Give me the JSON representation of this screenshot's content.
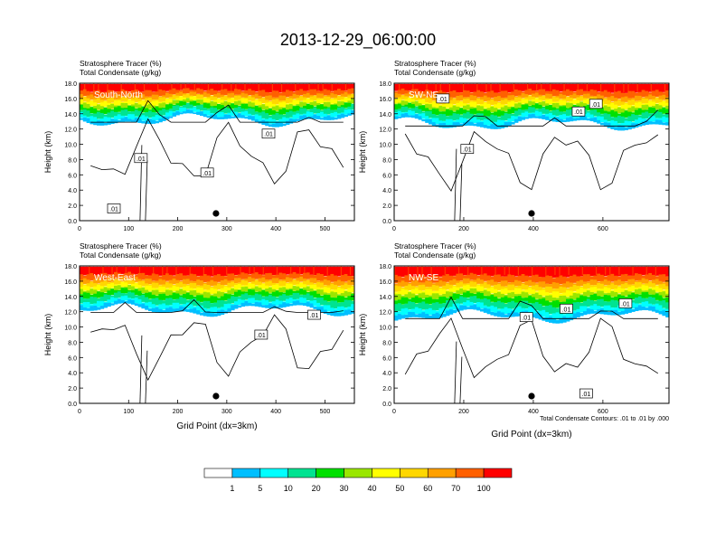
{
  "title": "2013-12-29_06:00:00",
  "chart_data": {
    "type": "heatmap",
    "panels": [
      {
        "name": "South-North",
        "label": "South-North",
        "line1": "Stratosphere Tracer   (%)",
        "line2": "Total Condensate   (g/kg)",
        "ylabel": "Height (km)",
        "xlabel": "",
        "xlim": [
          0,
          560
        ],
        "xticks": [
          0,
          100,
          200,
          300,
          400,
          500
        ],
        "ylim": [
          0,
          18
        ],
        "yticks": [
          "0.0",
          "2.0",
          "4.0",
          "6.0",
          "8.0",
          "10.0",
          "12.0",
          "14.0",
          "16.0",
          "18.0"
        ],
        "marker_x": 278,
        "band_top": 17.9,
        "band_bottom": 13.3,
        "contour_labels": [
          {
            "text": ".01",
            "x": 70,
            "y": 1.6
          },
          {
            "text": ".01",
            "x": 125,
            "y": 8.2
          },
          {
            "text": ".01",
            "x": 260,
            "y": 6.3
          },
          {
            "text": ".01",
            "x": 385,
            "y": 11.4
          }
        ]
      },
      {
        "name": "SW-NE",
        "label": "SW-NE",
        "line1": "Stratosphere Tracer   (%)",
        "line2": "Total Condensate   (g/kg)",
        "ylabel": "Height (km)",
        "xlabel": "",
        "xlim": [
          0,
          790
        ],
        "xticks": [
          0,
          200,
          400,
          600
        ],
        "ylim": [
          0,
          18
        ],
        "yticks": [
          "0.0",
          "2.0",
          "4.0",
          "6.0",
          "8.0",
          "10.0",
          "12.0",
          "14.0",
          "16.0",
          "18.0"
        ],
        "marker_x": 395,
        "band_top": 17.9,
        "band_bottom": 12.8,
        "contour_labels": [
          {
            "text": ".01",
            "x": 210,
            "y": 9.4
          },
          {
            "text": ".01",
            "x": 140,
            "y": 16.0
          },
          {
            "text": ".01",
            "x": 530,
            "y": 14.3
          },
          {
            "text": ".01",
            "x": 580,
            "y": 15.3
          }
        ]
      },
      {
        "name": "West-East",
        "label": "West-East",
        "line1": "Stratosphere Tracer   (%)",
        "line2": "Total Condensate   (g/kg)",
        "ylabel": "Height (km)",
        "xlabel": "Grid Point (dx=3km)",
        "xlim": [
          0,
          560
        ],
        "xticks": [
          0,
          100,
          200,
          300,
          400,
          500
        ],
        "ylim": [
          0,
          18
        ],
        "yticks": [
          "0.0",
          "2.0",
          "4.0",
          "6.0",
          "8.0",
          "10.0",
          "12.0",
          "14.0",
          "16.0",
          "18.0"
        ],
        "marker_x": 278,
        "band_top": 17.9,
        "band_bottom": 12.3,
        "contour_labels": [
          {
            "text": ".01",
            "x": 370,
            "y": 9.0
          },
          {
            "text": ".01",
            "x": 478,
            "y": 11.6
          }
        ]
      },
      {
        "name": "NW-SE",
        "label": "NW-SE",
        "line1": "Stratosphere Tracer   (%)",
        "line2": "Total Condensate   (g/kg)",
        "ylabel": "Height (km)",
        "xlabel": "Grid Point (dx=3km)",
        "note": "Total Condensate Contours: .01 to .01 by .000",
        "xlim": [
          0,
          790
        ],
        "xticks": [
          0,
          200,
          400,
          600
        ],
        "ylim": [
          0,
          18
        ],
        "yticks": [
          "0.0",
          "2.0",
          "4.0",
          "6.0",
          "8.0",
          "10.0",
          "12.0",
          "14.0",
          "16.0",
          "18.0"
        ],
        "marker_x": 395,
        "band_top": 17.9,
        "band_bottom": 11.5,
        "contour_labels": [
          {
            "text": ".01",
            "x": 380,
            "y": 11.3
          },
          {
            "text": ".01",
            "x": 495,
            "y": 12.4
          },
          {
            "text": ".01",
            "x": 665,
            "y": 13.1
          },
          {
            "text": ".01",
            "x": 552,
            "y": 1.3
          }
        ]
      }
    ],
    "colorbar": {
      "labels": [
        "1",
        "5",
        "10",
        "20",
        "30",
        "40",
        "50",
        "60",
        "70",
        "100"
      ],
      "colors": [
        "#ffffff",
        "#1e90ff",
        "#00bfff",
        "#00ffff",
        "#00e391",
        "#00e000",
        "#9ae600",
        "#ffff00",
        "#ffd700",
        "#ffa000",
        "#ff6000",
        "#ff0000"
      ]
    }
  }
}
